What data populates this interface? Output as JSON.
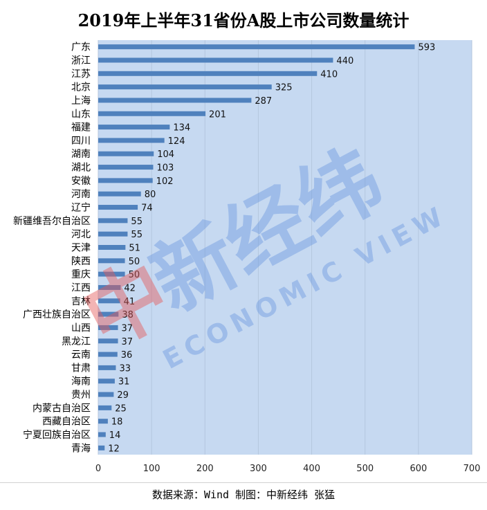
{
  "chart_data": {
    "type": "bar",
    "orientation": "horizontal",
    "title": "2019年上半年31省份A股上市公司数量统计",
    "categories": [
      "广东",
      "浙江",
      "江苏",
      "北京",
      "上海",
      "山东",
      "福建",
      "四川",
      "湖南",
      "湖北",
      "安徽",
      "河南",
      "辽宁",
      "新疆维吾尔自治区",
      "河北",
      "天津",
      "陕西",
      "重庆",
      "江西",
      "吉林",
      "广西壮族自治区",
      "山西",
      "黑龙江",
      "云南",
      "甘肃",
      "海南",
      "贵州",
      "内蒙古自治区",
      "西藏自治区",
      "宁夏回族自治区",
      "青海"
    ],
    "values": [
      593,
      440,
      410,
      325,
      287,
      201,
      134,
      124,
      104,
      103,
      102,
      80,
      74,
      55,
      55,
      51,
      50,
      50,
      42,
      41,
      38,
      37,
      37,
      36,
      33,
      31,
      29,
      25,
      18,
      14,
      12
    ],
    "xlim": [
      0,
      700
    ],
    "x_ticks": [
      0,
      100,
      200,
      300,
      400,
      500,
      600,
      700
    ],
    "grid": true,
    "data_labels": true,
    "bar_color": "#4f81bd",
    "plot_background": "#c6d9f1"
  },
  "source": "数据来源：Wind 制图：中新经纬 张猛",
  "watermark": {
    "logo_text": "中新经纬",
    "subtext": "ECONOMIC VIEW"
  }
}
